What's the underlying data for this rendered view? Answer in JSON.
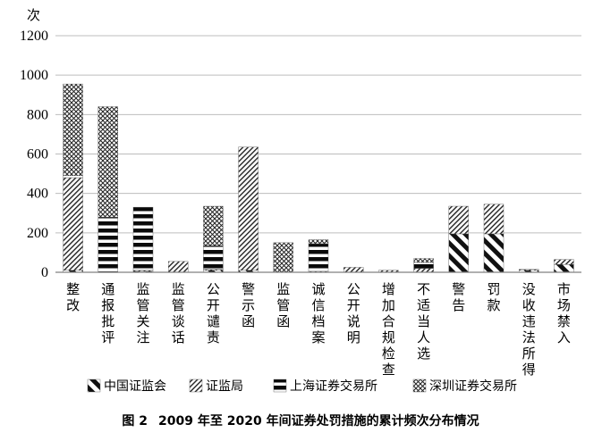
{
  "chart_data": {
    "type": "bar",
    "stacked": true,
    "y_unit_label": "次",
    "ylim": [
      0,
      1200
    ],
    "yticks": [
      0,
      200,
      400,
      600,
      800,
      1000,
      1200
    ],
    "grid": true,
    "legend_position": "bottom",
    "categories": [
      "整改",
      "通报批评",
      "监管关注",
      "监管谈话",
      "公开谴责",
      "警示函",
      "监管函",
      "诚信档案",
      "公开说明",
      "增加合规检查",
      "不适当人选",
      "警告",
      "罚款",
      "没收违法所得",
      "市场禁入"
    ],
    "series": [
      {
        "name": "中国证监会",
        "pattern": "diag-thick",
        "values": [
          10,
          0,
          5,
          0,
          10,
          10,
          0,
          0,
          0,
          0,
          0,
          195,
          195,
          10,
          40
        ]
      },
      {
        "name": "证监局",
        "pattern": "diag-thin",
        "values": [
          470,
          0,
          5,
          55,
          5,
          625,
          0,
          5,
          25,
          10,
          20,
          140,
          150,
          5,
          25
        ]
      },
      {
        "name": "上海证券交易所",
        "pattern": "horizontal",
        "values": [
          10,
          280,
          320,
          0,
          120,
          0,
          0,
          140,
          0,
          0,
          30,
          0,
          0,
          0,
          0
        ]
      },
      {
        "name": "深圳证券交易所",
        "pattern": "cross",
        "values": [
          465,
          560,
          0,
          0,
          200,
          0,
          150,
          20,
          0,
          0,
          20,
          0,
          0,
          0,
          0
        ]
      }
    ]
  },
  "caption": {
    "label": "图 2",
    "text": "2009 年至 2020 年间证券处罚措施的累计频次分布情况"
  }
}
